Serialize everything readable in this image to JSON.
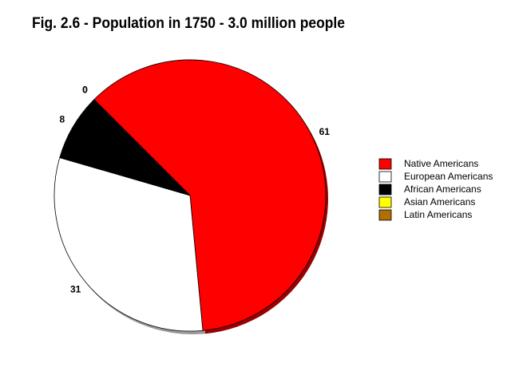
{
  "chart_data": {
    "type": "pie",
    "title": "Fig. 2.6 - Population in 1750 - 3.0 million people",
    "categories": [
      "Native Americans",
      "European Americans",
      "African Americans",
      "Asian Americans",
      "Latin Americans"
    ],
    "values": [
      61,
      31,
      8,
      0,
      0
    ],
    "colors": [
      "#ff0000",
      "#ffffff",
      "#000000",
      "#ffff00",
      "#b07000"
    ],
    "legend": "right"
  }
}
